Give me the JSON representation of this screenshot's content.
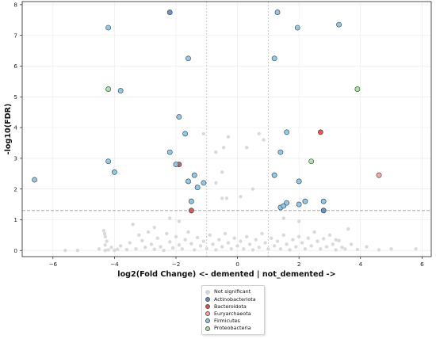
{
  "chart_data": {
    "type": "scatter",
    "title": "",
    "xlabel": "log2(Fold Change) <- demented | not_demented ->",
    "ylabel": "-log10(FDR)",
    "xlim": [
      -7.0,
      6.3
    ],
    "ylim": [
      -0.2,
      8.1
    ],
    "xticks": [
      -6,
      -4,
      -2,
      0,
      2,
      4,
      6
    ],
    "yticks": [
      0,
      1,
      2,
      3,
      4,
      5,
      6,
      7,
      8
    ],
    "x_tick_labels": [
      "−6",
      "−4",
      "−2",
      "0",
      "2",
      "4",
      "6"
    ],
    "y_tick_labels": [
      "0",
      "1",
      "2",
      "3",
      "4",
      "5",
      "6",
      "7",
      "8"
    ],
    "fc_thresholds": [
      -1,
      1
    ],
    "fdr_threshold": 1.3,
    "legend_position": "below-center",
    "series": [
      {
        "name": "Not significant",
        "color": "#d3d3d3",
        "points": [
          [
            -5.6,
            0.0
          ],
          [
            -5.2,
            0.0
          ],
          [
            -4.5,
            0.05
          ],
          [
            -4.3,
            0.0
          ],
          [
            -4.2,
            0.02
          ],
          [
            -4.1,
            0.1
          ],
          [
            -4.0,
            0.0
          ],
          [
            -3.9,
            0.04
          ],
          [
            -4.35,
            0.65
          ],
          [
            -4.3,
            0.45
          ],
          [
            -4.25,
            0.3
          ],
          [
            -4.3,
            0.18
          ],
          [
            -4.32,
            0.55
          ],
          [
            -3.8,
            0.15
          ],
          [
            -3.6,
            0.03
          ],
          [
            -3.5,
            0.25
          ],
          [
            -3.3,
            0.05
          ],
          [
            -3.2,
            0.5
          ],
          [
            -3.1,
            0.32
          ],
          [
            -3.0,
            0.1
          ],
          [
            -2.9,
            0.6
          ],
          [
            -2.8,
            0.2
          ],
          [
            -2.7,
            0.04
          ],
          [
            -2.6,
            0.4
          ],
          [
            -2.5,
            0.12
          ],
          [
            -2.4,
            0.0
          ],
          [
            -2.3,
            0.55
          ],
          [
            -2.2,
            0.28
          ],
          [
            -2.1,
            0.08
          ],
          [
            -2.0,
            0.45
          ],
          [
            -1.9,
            0.18
          ],
          [
            -1.8,
            0.05
          ],
          [
            -1.7,
            0.35
          ],
          [
            -1.6,
            0.6
          ],
          [
            -1.5,
            0.22
          ],
          [
            -1.4,
            0.02
          ],
          [
            -1.3,
            0.42
          ],
          [
            -1.2,
            0.15
          ],
          [
            -1.1,
            0.3
          ],
          [
            -1.0,
            0.06
          ],
          [
            -0.9,
            0.5
          ],
          [
            -0.8,
            0.2
          ],
          [
            -0.7,
            0.02
          ],
          [
            -0.6,
            0.35
          ],
          [
            -0.5,
            0.12
          ],
          [
            -0.4,
            0.55
          ],
          [
            -0.3,
            0.25
          ],
          [
            -0.2,
            0.05
          ],
          [
            -0.1,
            0.4
          ],
          [
            0.0,
            0.15
          ],
          [
            0.1,
            0.3
          ],
          [
            0.2,
            0.05
          ],
          [
            0.3,
            0.45
          ],
          [
            0.4,
            0.2
          ],
          [
            0.5,
            0.02
          ],
          [
            0.6,
            0.35
          ],
          [
            0.7,
            0.1
          ],
          [
            0.8,
            0.55
          ],
          [
            0.9,
            0.25
          ],
          [
            1.0,
            0.05
          ],
          [
            1.1,
            0.4
          ],
          [
            1.2,
            0.15
          ],
          [
            1.3,
            0.3
          ],
          [
            1.4,
            0.05
          ],
          [
            1.5,
            0.5
          ],
          [
            1.6,
            0.2
          ],
          [
            1.7,
            0.02
          ],
          [
            1.8,
            0.35
          ],
          [
            1.9,
            0.12
          ],
          [
            2.0,
            0.45
          ],
          [
            2.1,
            0.25
          ],
          [
            2.2,
            0.05
          ],
          [
            2.3,
            0.4
          ],
          [
            2.4,
            0.15
          ],
          [
            2.5,
            0.6
          ],
          [
            2.6,
            0.3
          ],
          [
            2.7,
            0.05
          ],
          [
            2.8,
            0.38
          ],
          [
            2.9,
            0.12
          ],
          [
            3.0,
            0.5
          ],
          [
            3.1,
            0.2
          ],
          [
            3.2,
            0.02
          ],
          [
            3.3,
            0.32
          ],
          [
            3.4,
            0.1
          ],
          [
            3.5,
            0.05
          ],
          [
            3.7,
            0.2
          ],
          [
            3.9,
            0.03
          ],
          [
            4.2,
            0.12
          ],
          [
            4.6,
            0.02
          ],
          [
            5.0,
            0.05
          ],
          [
            5.8,
            0.05
          ],
          [
            -0.5,
            1.7
          ],
          [
            -0.35,
            1.7
          ],
          [
            0.1,
            1.75
          ],
          [
            -0.7,
            2.2
          ],
          [
            -0.5,
            2.55
          ],
          [
            -0.7,
            3.2
          ],
          [
            -0.3,
            3.7
          ],
          [
            0.3,
            3.35
          ],
          [
            0.5,
            2.0
          ],
          [
            0.7,
            3.8
          ],
          [
            0.85,
            3.6
          ],
          [
            -1.1,
            3.8
          ],
          [
            -0.45,
            3.35
          ],
          [
            -1.5,
            1.25
          ],
          [
            -2.2,
            1.05
          ],
          [
            -1.9,
            0.95
          ],
          [
            1.5,
            1.05
          ],
          [
            2.0,
            0.95
          ],
          [
            3.6,
            0.7
          ],
          [
            3.2,
            0.35
          ],
          [
            -3.4,
            0.85
          ],
          [
            -2.7,
            0.75
          ]
        ]
      },
      {
        "name": "Actinobacteriota",
        "color": "#5f8fbf",
        "points": [
          [
            -2.2,
            7.75
          ],
          [
            2.8,
            1.3
          ]
        ]
      },
      {
        "name": "Bacteroidota",
        "color": "#d9534f",
        "points": [
          [
            -1.9,
            2.8
          ],
          [
            2.7,
            3.85
          ],
          [
            -1.5,
            1.3
          ]
        ]
      },
      {
        "name": "Euryarchaeota",
        "color": "#f2a6a6",
        "points": [
          [
            4.6,
            2.45
          ]
        ]
      },
      {
        "name": "Firmicutes",
        "color": "#87c7e8",
        "points": [
          [
            -6.6,
            2.3
          ],
          [
            -4.2,
            7.25
          ],
          [
            -3.8,
            5.2
          ],
          [
            -1.6,
            6.25
          ],
          [
            -4.2,
            2.9
          ],
          [
            -4.0,
            2.55
          ],
          [
            -1.9,
            4.35
          ],
          [
            -1.7,
            3.8
          ],
          [
            -2.2,
            3.2
          ],
          [
            -2.0,
            2.8
          ],
          [
            -1.4,
            2.45
          ],
          [
            -1.6,
            2.25
          ],
          [
            -1.3,
            2.05
          ],
          [
            -1.1,
            2.2
          ],
          [
            -1.5,
            1.6
          ],
          [
            1.3,
            7.75
          ],
          [
            1.95,
            7.25
          ],
          [
            3.3,
            7.35
          ],
          [
            1.2,
            6.25
          ],
          [
            1.6,
            3.85
          ],
          [
            1.4,
            3.2
          ],
          [
            1.2,
            2.45
          ],
          [
            2.0,
            2.25
          ],
          [
            1.4,
            1.4
          ],
          [
            1.5,
            1.45
          ],
          [
            1.6,
            1.55
          ],
          [
            2.2,
            1.6
          ],
          [
            2.0,
            1.5
          ],
          [
            2.8,
            1.6
          ]
        ]
      },
      {
        "name": "Proteobacteria",
        "color": "#a6e3a1",
        "points": [
          [
            -4.2,
            5.25
          ],
          [
            3.9,
            5.25
          ],
          [
            2.4,
            2.9
          ]
        ]
      }
    ]
  }
}
